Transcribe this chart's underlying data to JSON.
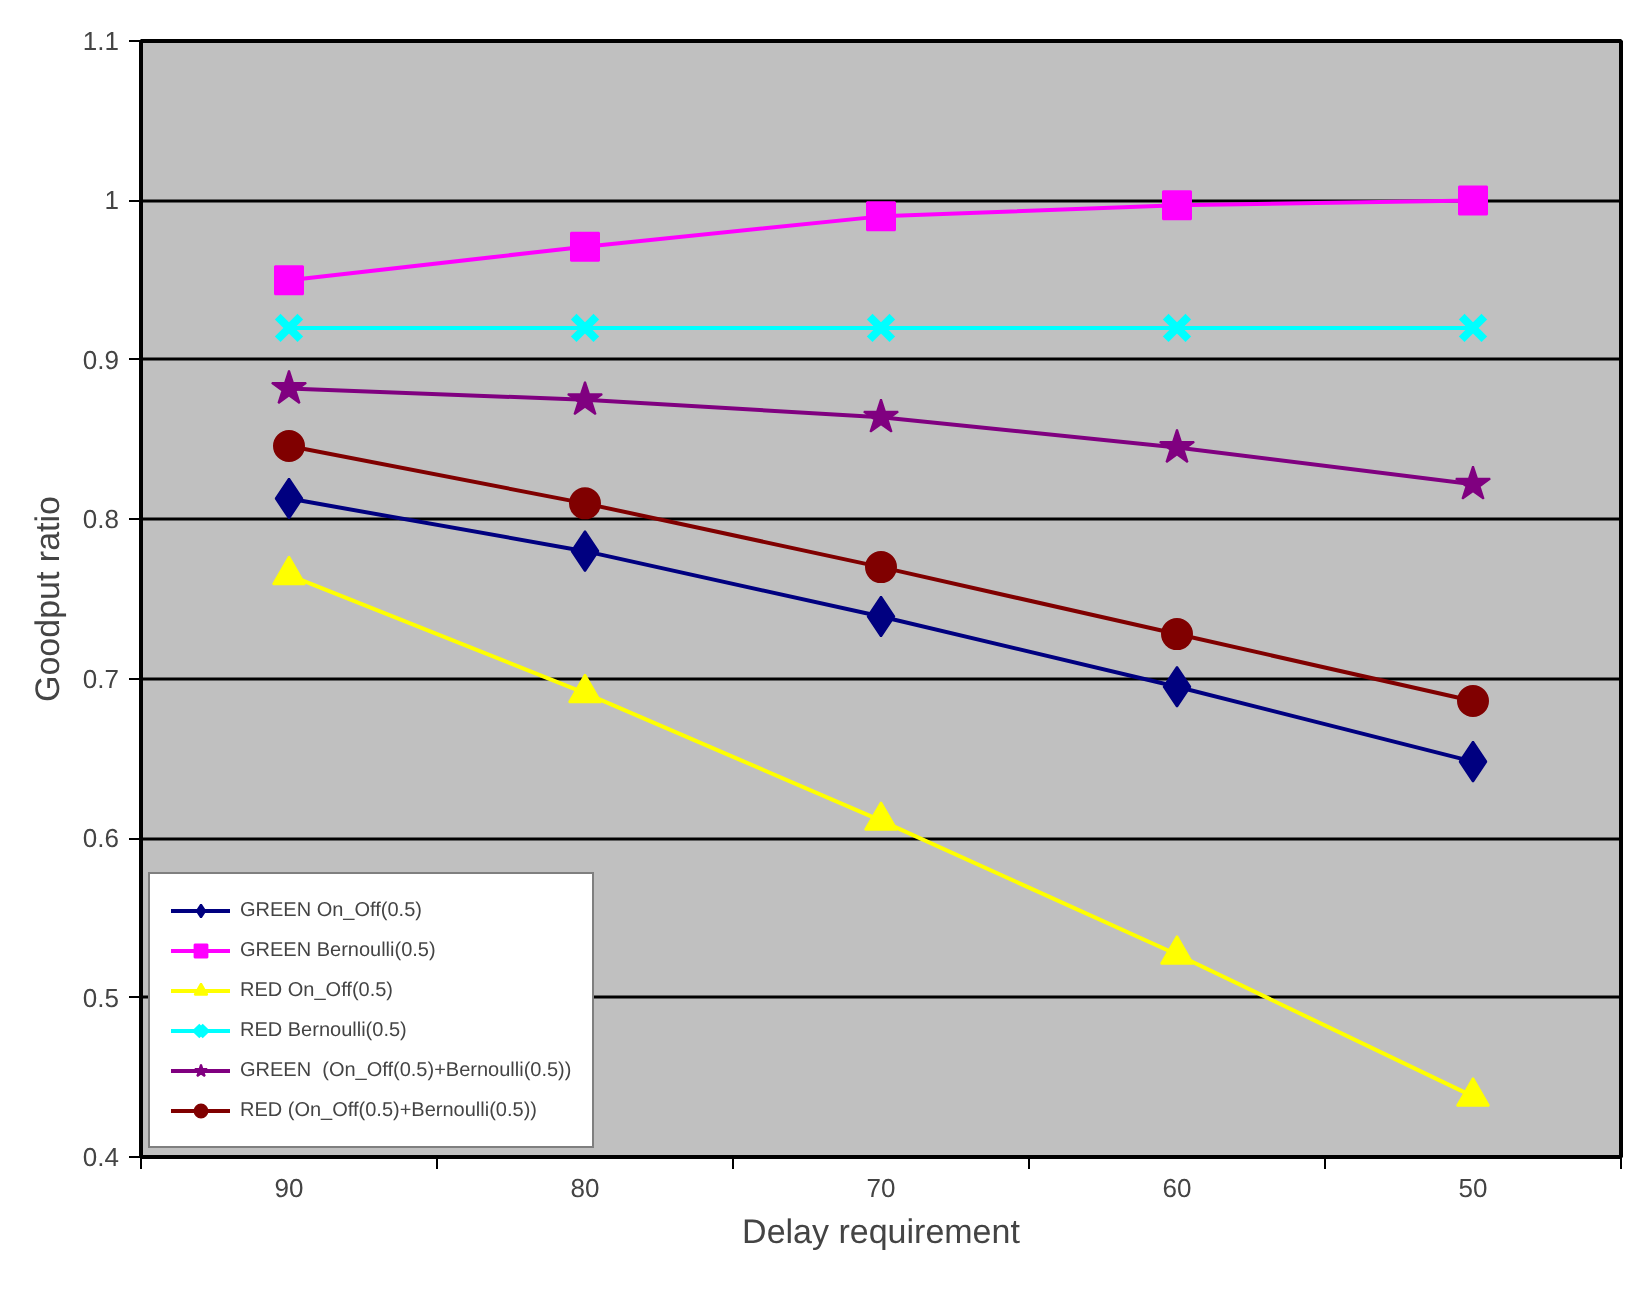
{
  "chart_data": {
    "type": "line",
    "xlabel": "Delay requirement",
    "ylabel": "Goodput ratio",
    "categories": [
      "90",
      "80",
      "70",
      "60",
      "50"
    ],
    "ylim": [
      0.4,
      1.1
    ],
    "yticks": [
      0.4,
      0.5,
      0.6,
      0.7,
      0.8,
      0.9,
      1,
      1.1
    ],
    "grid": "y",
    "legend": "bottom left",
    "series": [
      {
        "name": "GREEN On_Off(0.5)",
        "color": "#000080",
        "marker": "diamond",
        "values": [
          0.813,
          0.78,
          0.739,
          0.695,
          0.648
        ]
      },
      {
        "name": "GREEN Bernoulli(0.5)",
        "color": "#ff00ff",
        "marker": "square",
        "values": [
          0.95,
          0.971,
          0.99,
          0.997,
          1.0
        ]
      },
      {
        "name": "RED On_Off(0.5)",
        "color": "#ffff00",
        "marker": "triangle",
        "values": [
          0.765,
          0.691,
          0.611,
          0.527,
          0.438
        ]
      },
      {
        "name": "RED Bernoulli(0.5)",
        "color": "#00ffff",
        "marker": "cross",
        "values": [
          0.92,
          0.92,
          0.92,
          0.92,
          0.92
        ]
      },
      {
        "name": "GREEN  (On_Off(0.5)+Bernoulli(0.5))",
        "color": "#800080",
        "marker": "star",
        "values": [
          0.882,
          0.875,
          0.864,
          0.845,
          0.822
        ]
      },
      {
        "name": "RED (On_Off(0.5)+Bernoulli(0.5))",
        "color": "#800000",
        "marker": "circle",
        "values": [
          0.846,
          0.81,
          0.77,
          0.728,
          0.686
        ]
      }
    ]
  }
}
